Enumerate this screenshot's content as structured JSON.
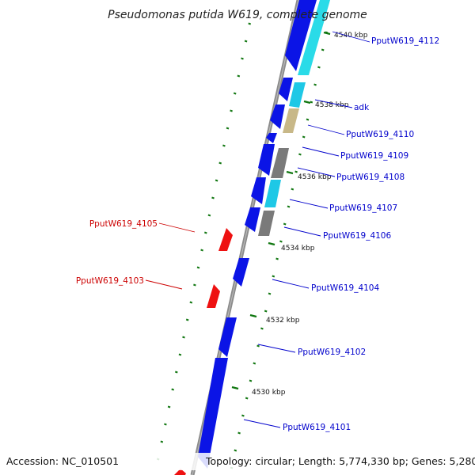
{
  "title": "Pseudomonas putida W619, complete genome",
  "footer": {
    "accession": "Accession: NC_010501",
    "topology": "Topology: circular; Length: 5,774,330 bp; Genes: 5,280"
  },
  "colors": {
    "plus_strand_label": "#0000cc",
    "minus_strand_label": "#cc0000",
    "backbone": "#8c8c8c",
    "tick": "#117711",
    "gene_blue": "#0b14e6",
    "gene_cyan": "#1ec8e6",
    "gene_light_cyan": "#2adbe8",
    "gene_tan": "#c8b888",
    "gene_gray": "#7a7a7a",
    "gene_red": "#ee1111"
  },
  "kbp_labels": [
    "4540 kbp",
    "4538 kbp",
    "4536 kbp",
    "4534 kbp",
    "4532 kbp",
    "4530 kbp"
  ],
  "gene_labels": {
    "plus": [
      "PputW619_4112",
      "adk",
      "PputW619_4110",
      "PputW619_4109",
      "PputW619_4108",
      "PputW619_4107",
      "PputW619_4106",
      "PputW619_4104",
      "PputW619_4102",
      "PputW619_4101"
    ],
    "minus": [
      "PputW619_4105",
      "PputW619_4103"
    ]
  }
}
